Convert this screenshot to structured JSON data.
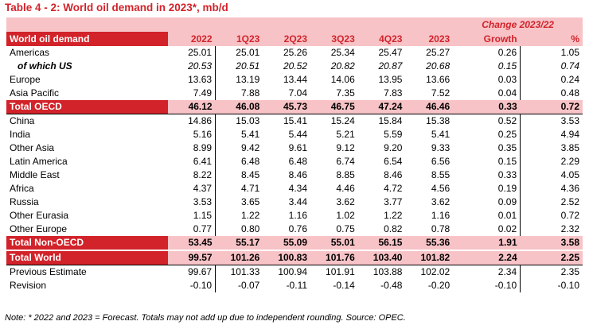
{
  "title": "Table 4 - 2: World oil demand in 2023*, mb/d",
  "header": {
    "change_title": "Change 2023/22",
    "label": "World oil demand",
    "columns": [
      "2022",
      "1Q23",
      "2Q23",
      "3Q23",
      "4Q23",
      "2023",
      "Growth",
      "%"
    ]
  },
  "rows": [
    {
      "label": "Americas",
      "values": [
        "25.01",
        "25.01",
        "25.26",
        "25.34",
        "25.47",
        "25.27",
        "0.26",
        "1.05"
      ]
    },
    {
      "label": "of which US",
      "values": [
        "20.53",
        "20.51",
        "20.52",
        "20.82",
        "20.87",
        "20.68",
        "0.15",
        "0.74"
      ]
    },
    {
      "label": "Europe",
      "values": [
        "13.63",
        "13.19",
        "13.44",
        "14.06",
        "13.95",
        "13.66",
        "0.03",
        "0.24"
      ]
    },
    {
      "label": "Asia Pacific",
      "values": [
        "7.49",
        "7.88",
        "7.04",
        "7.35",
        "7.83",
        "7.52",
        "0.04",
        "0.48"
      ]
    },
    {
      "label": "Total OECD",
      "values": [
        "46.12",
        "46.08",
        "45.73",
        "46.75",
        "47.24",
        "46.46",
        "0.33",
        "0.72"
      ]
    },
    {
      "label": "China",
      "values": [
        "14.86",
        "15.03",
        "15.41",
        "15.24",
        "15.84",
        "15.38",
        "0.52",
        "3.53"
      ]
    },
    {
      "label": "India",
      "values": [
        "5.16",
        "5.41",
        "5.44",
        "5.21",
        "5.59",
        "5.41",
        "0.25",
        "4.94"
      ]
    },
    {
      "label": "Other Asia",
      "values": [
        "8.99",
        "9.42",
        "9.61",
        "9.12",
        "9.20",
        "9.33",
        "0.35",
        "3.85"
      ]
    },
    {
      "label": "Latin America",
      "values": [
        "6.41",
        "6.48",
        "6.48",
        "6.74",
        "6.54",
        "6.56",
        "0.15",
        "2.29"
      ]
    },
    {
      "label": "Middle East",
      "values": [
        "8.22",
        "8.45",
        "8.46",
        "8.85",
        "8.46",
        "8.55",
        "0.33",
        "4.05"
      ]
    },
    {
      "label": "Africa",
      "values": [
        "4.37",
        "4.71",
        "4.34",
        "4.46",
        "4.72",
        "4.56",
        "0.19",
        "4.36"
      ]
    },
    {
      "label": "Russia",
      "values": [
        "3.53",
        "3.65",
        "3.44",
        "3.62",
        "3.77",
        "3.62",
        "0.09",
        "2.52"
      ]
    },
    {
      "label": "Other Eurasia",
      "values": [
        "1.15",
        "1.22",
        "1.16",
        "1.02",
        "1.22",
        "1.16",
        "0.01",
        "0.72"
      ]
    },
    {
      "label": "Other Europe",
      "values": [
        "0.77",
        "0.80",
        "0.76",
        "0.75",
        "0.82",
        "0.78",
        "0.02",
        "2.32"
      ]
    },
    {
      "label": "Total Non-OECD",
      "values": [
        "53.45",
        "55.17",
        "55.09",
        "55.01",
        "56.15",
        "55.36",
        "1.91",
        "3.58"
      ]
    },
    {
      "label": "Total World",
      "values": [
        "99.57",
        "101.26",
        "100.83",
        "101.76",
        "103.40",
        "101.82",
        "2.24",
        "2.25"
      ]
    },
    {
      "label": "Previous Estimate",
      "values": [
        "99.67",
        "101.33",
        "100.94",
        "101.91",
        "103.88",
        "102.02",
        "2.34",
        "2.35"
      ]
    },
    {
      "label": "Revision",
      "values": [
        "-0.10",
        "-0.07",
        "-0.11",
        "-0.14",
        "-0.48",
        "-0.20",
        "-0.10",
        "-0.10"
      ]
    }
  ],
  "note": "Note: * 2022 and 2023 = Forecast. Totals may not add up due to independent rounding. Source: OPEC.",
  "colors": {
    "brand_red": "#d2232a",
    "pink": "#f7c3c7"
  }
}
